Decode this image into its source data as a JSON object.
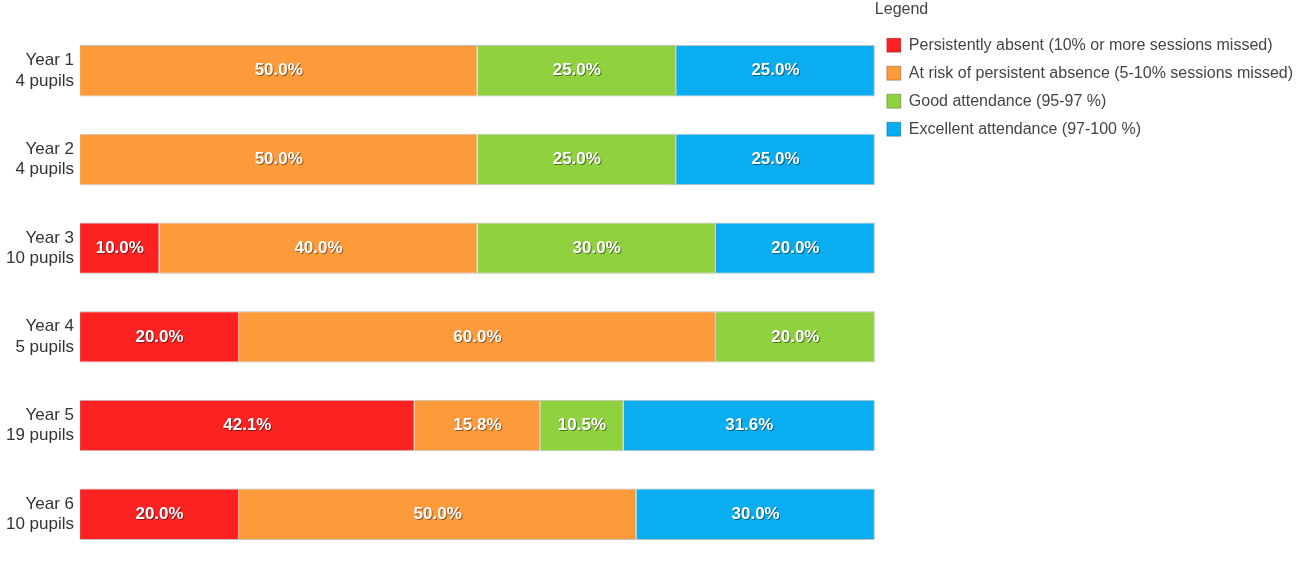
{
  "chart_data": {
    "type": "bar",
    "orientation": "horizontal",
    "stacked": true,
    "categories": [
      "Year 1\n4 pupils",
      "Year 2\n4 pupils",
      "Year 3\n10 pupils",
      "Year 4\n5 pupils",
      "Year 5\n19 pupils",
      "Year 6\n10 pupils"
    ],
    "xlim": [
      0,
      100
    ],
    "tick_labels": "y",
    "grid": false,
    "legend": "right",
    "legend_title": "Legend",
    "data_labels": false,
    "series": [
      {
        "name": "Persistently absent (10% or more sessions missed)",
        "color": "#fd2222",
        "values": [
          null,
          null,
          10.0,
          20.0,
          42.1,
          20.0
        ],
        "value_labels": [
          null,
          null,
          "10.0%",
          "20.0%",
          "42.1%",
          "20.0%"
        ]
      },
      {
        "name": "At risk of persistent absence (5-10% sessions missed)",
        "color": "#fd9a3a",
        "values": [
          50.0,
          50.0,
          40.0,
          60.0,
          15.8,
          50.0
        ],
        "value_labels": [
          "50.0%",
          "50.0%",
          "40.0%",
          "60.0%",
          "15.8%",
          "50.0%"
        ]
      },
      {
        "name": "Good attendance (95-97 %)",
        "color": "#8fd13f",
        "values": [
          25.0,
          25.0,
          30.0,
          20.0,
          10.5,
          null
        ],
        "value_labels": [
          "25.0%",
          "25.0%",
          "30.0%",
          "20.0%",
          "10.5%",
          null
        ]
      },
      {
        "name": "Excellent attendance (97-100 %)",
        "color": "#0aaef0",
        "values": [
          25.0,
          25.0,
          20.0,
          null,
          31.6,
          30.0
        ],
        "value_labels": [
          "25.0%",
          "25.0%",
          "20.0%",
          null,
          "31.6%",
          "30.0%"
        ]
      }
    ]
  }
}
